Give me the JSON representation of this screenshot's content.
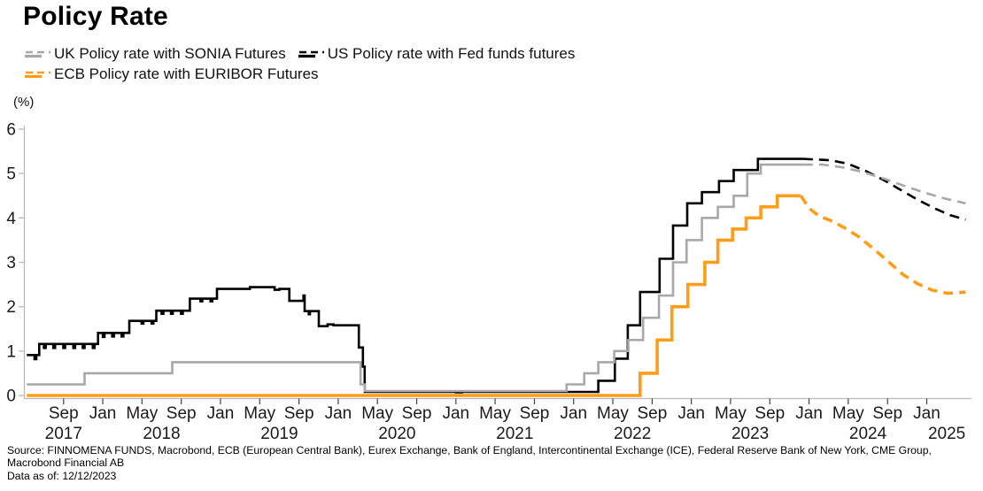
{
  "footer": {
    "source": "Source: FINNOMENA FUNDS, Macrobond, ECB (European Central Bank), Eurex Exchange, Bank of England, Intercontinental Exchange (ICE), Federal Reserve Bank of New York, CME Group, Macrobond Financial AB",
    "data_as_of": "Data as of: 12/12/2023"
  },
  "chart_data": {
    "type": "line",
    "title": "Policy Rate",
    "xlabel": "",
    "ylabel": "(%)",
    "x_unit": "decimal_year",
    "y_unit": "percent",
    "xlim": [
      2017.33,
      2025.38
    ],
    "ylim": [
      0,
      6
    ],
    "y_ticks": [
      0,
      1,
      2,
      3,
      4,
      5,
      6
    ],
    "grid": false,
    "legend_position": "top-left",
    "x_month_ticks": [
      [
        2017.667,
        "Sep"
      ],
      [
        2018.0,
        "Jan"
      ],
      [
        2018.333,
        "May"
      ],
      [
        2018.667,
        "Sep"
      ],
      [
        2019.0,
        "Jan"
      ],
      [
        2019.333,
        "May"
      ],
      [
        2019.667,
        "Sep"
      ],
      [
        2020.0,
        "Jan"
      ],
      [
        2020.333,
        "May"
      ],
      [
        2020.667,
        "Sep"
      ],
      [
        2021.0,
        "Jan"
      ],
      [
        2021.333,
        "May"
      ],
      [
        2021.667,
        "Sep"
      ],
      [
        2022.0,
        "Jan"
      ],
      [
        2022.333,
        "May"
      ],
      [
        2022.667,
        "Sep"
      ],
      [
        2023.0,
        "Jan"
      ],
      [
        2023.333,
        "May"
      ],
      [
        2023.667,
        "Sep"
      ],
      [
        2024.0,
        "Jan"
      ],
      [
        2024.333,
        "May"
      ],
      [
        2024.667,
        "Sep"
      ],
      [
        2025.0,
        "Jan"
      ]
    ],
    "x_year_labels": [
      [
        2017.667,
        "2017"
      ],
      [
        2018.5,
        "2018"
      ],
      [
        2019.5,
        "2019"
      ],
      [
        2020.5,
        "2020"
      ],
      [
        2021.5,
        "2021"
      ],
      [
        2022.5,
        "2022"
      ],
      [
        2023.5,
        "2023"
      ],
      [
        2024.5,
        "2024"
      ],
      [
        2025.17,
        "2025"
      ]
    ],
    "series": [
      {
        "id": "uk-policy-sonia",
        "name": "UK Policy rate with SONIA Futures",
        "color": "#a8a8a8",
        "line_width": 2.6,
        "solid_segment": {
          "interpolation": "step-after",
          "points": [
            [
              2017.355,
              0.25
            ],
            [
              2017.845,
              0.5
            ],
            [
              2018.59,
              0.75
            ],
            [
              2020.19,
              0.25
            ],
            [
              2020.225,
              0.1
            ],
            [
              2021.94,
              0.25
            ],
            [
              2022.09,
              0.5
            ],
            [
              2022.21,
              0.75
            ],
            [
              2022.345,
              1.0
            ],
            [
              2022.465,
              1.25
            ],
            [
              2022.59,
              1.75
            ],
            [
              2022.725,
              2.25
            ],
            [
              2022.845,
              3.0
            ],
            [
              2022.96,
              3.5
            ],
            [
              2023.09,
              4.0
            ],
            [
              2023.225,
              4.25
            ],
            [
              2023.36,
              4.5
            ],
            [
              2023.475,
              5.0
            ],
            [
              2023.59,
              5.2
            ],
            [
              2023.95,
              5.2
            ]
          ]
        },
        "futures_segment": {
          "interpolation": "linear",
          "style": "dashed",
          "points": [
            [
              2023.95,
              5.2
            ],
            [
              2024.12,
              5.2
            ],
            [
              2024.28,
              5.14
            ],
            [
              2024.45,
              5.04
            ],
            [
              2024.62,
              4.9
            ],
            [
              2024.8,
              4.73
            ],
            [
              2024.98,
              4.57
            ],
            [
              2025.15,
              4.44
            ],
            [
              2025.33,
              4.33
            ]
          ]
        }
      },
      {
        "id": "us-policy-fedfunds",
        "name": "US Policy rate with Fed funds futures",
        "color": "#000000",
        "line_width": 2.6,
        "solid_segment": {
          "interpolation": "step-after",
          "points": [
            [
              2017.355,
              0.91
            ],
            [
              2017.42,
              0.82
            ],
            [
              2017.435,
              0.91
            ],
            [
              2017.46,
              1.16
            ],
            [
              2017.5,
              1.07
            ],
            [
              2017.515,
              1.16
            ],
            [
              2017.58,
              1.07
            ],
            [
              2017.595,
              1.16
            ],
            [
              2017.665,
              1.07
            ],
            [
              2017.68,
              1.16
            ],
            [
              2017.75,
              1.07
            ],
            [
              2017.765,
              1.16
            ],
            [
              2017.83,
              1.07
            ],
            [
              2017.845,
              1.16
            ],
            [
              2017.915,
              1.07
            ],
            [
              2017.93,
              1.16
            ],
            [
              2017.96,
              1.41
            ],
            [
              2018.0,
              1.32
            ],
            [
              2018.015,
              1.41
            ],
            [
              2018.08,
              1.33
            ],
            [
              2018.095,
              1.41
            ],
            [
              2018.16,
              1.33
            ],
            [
              2018.175,
              1.41
            ],
            [
              2018.225,
              1.68
            ],
            [
              2018.33,
              1.62
            ],
            [
              2018.345,
              1.68
            ],
            [
              2018.415,
              1.62
            ],
            [
              2018.43,
              1.68
            ],
            [
              2018.455,
              1.91
            ],
            [
              2018.5,
              1.84
            ],
            [
              2018.515,
              1.91
            ],
            [
              2018.58,
              1.84
            ],
            [
              2018.595,
              1.91
            ],
            [
              2018.665,
              1.84
            ],
            [
              2018.68,
              1.91
            ],
            [
              2018.74,
              2.18
            ],
            [
              2018.83,
              2.12
            ],
            [
              2018.845,
              2.18
            ],
            [
              2018.915,
              2.12
            ],
            [
              2018.93,
              2.18
            ],
            [
              2018.97,
              2.4
            ],
            [
              2019.25,
              2.44
            ],
            [
              2019.42,
              2.44
            ],
            [
              2019.46,
              2.38
            ],
            [
              2019.5,
              2.4
            ],
            [
              2019.585,
              2.13
            ],
            [
              2019.7,
              2.13
            ],
            [
              2019.705,
              2.25
            ],
            [
              2019.715,
              1.9
            ],
            [
              2019.75,
              1.83
            ],
            [
              2019.76,
              1.9
            ],
            [
              2019.835,
              1.56
            ],
            [
              2019.91,
              1.6
            ],
            [
              2019.96,
              1.58
            ],
            [
              2020.175,
              1.08
            ],
            [
              2020.21,
              0.65
            ],
            [
              2020.225,
              0.08
            ],
            [
              2021.0,
              0.07
            ],
            [
              2021.05,
              0.08
            ],
            [
              2022.21,
              0.33
            ],
            [
              2022.35,
              0.83
            ],
            [
              2022.46,
              1.58
            ],
            [
              2022.565,
              2.33
            ],
            [
              2022.73,
              3.08
            ],
            [
              2022.845,
              3.83
            ],
            [
              2022.965,
              4.33
            ],
            [
              2023.09,
              4.58
            ],
            [
              2023.235,
              4.83
            ],
            [
              2023.36,
              5.08
            ],
            [
              2023.565,
              5.33
            ],
            [
              2023.95,
              5.33
            ]
          ]
        },
        "futures_segment": {
          "interpolation": "linear",
          "style": "dashed",
          "points": [
            [
              2023.95,
              5.33
            ],
            [
              2024.18,
              5.3
            ],
            [
              2024.33,
              5.22
            ],
            [
              2024.48,
              5.06
            ],
            [
              2024.63,
              4.86
            ],
            [
              2024.78,
              4.63
            ],
            [
              2024.93,
              4.4
            ],
            [
              2025.08,
              4.2
            ],
            [
              2025.2,
              4.06
            ],
            [
              2025.33,
              3.96
            ]
          ]
        }
      },
      {
        "id": "ecb-policy-euribor",
        "name": "ECB Policy rate with EURIBOR Futures",
        "color": "#ff9e16",
        "line_width": 3.6,
        "solid_segment": {
          "interpolation": "step-after",
          "points": [
            [
              2017.355,
              0.0
            ],
            [
              2022.565,
              0.5
            ],
            [
              2022.71,
              1.25
            ],
            [
              2022.835,
              2.0
            ],
            [
              2022.97,
              2.5
            ],
            [
              2023.115,
              3.0
            ],
            [
              2023.225,
              3.5
            ],
            [
              2023.35,
              3.75
            ],
            [
              2023.465,
              4.0
            ],
            [
              2023.59,
              4.25
            ],
            [
              2023.73,
              4.5
            ],
            [
              2023.93,
              4.5
            ]
          ]
        },
        "futures_segment": {
          "interpolation": "linear",
          "style": "dashed",
          "points": [
            [
              2023.93,
              4.5
            ],
            [
              2024.0,
              4.22
            ],
            [
              2024.08,
              4.05
            ],
            [
              2024.2,
              3.92
            ],
            [
              2024.3,
              3.78
            ],
            [
              2024.42,
              3.58
            ],
            [
              2024.55,
              3.3
            ],
            [
              2024.68,
              3.0
            ],
            [
              2024.8,
              2.72
            ],
            [
              2024.92,
              2.52
            ],
            [
              2025.05,
              2.37
            ],
            [
              2025.18,
              2.3
            ],
            [
              2025.33,
              2.33
            ]
          ]
        }
      }
    ]
  }
}
